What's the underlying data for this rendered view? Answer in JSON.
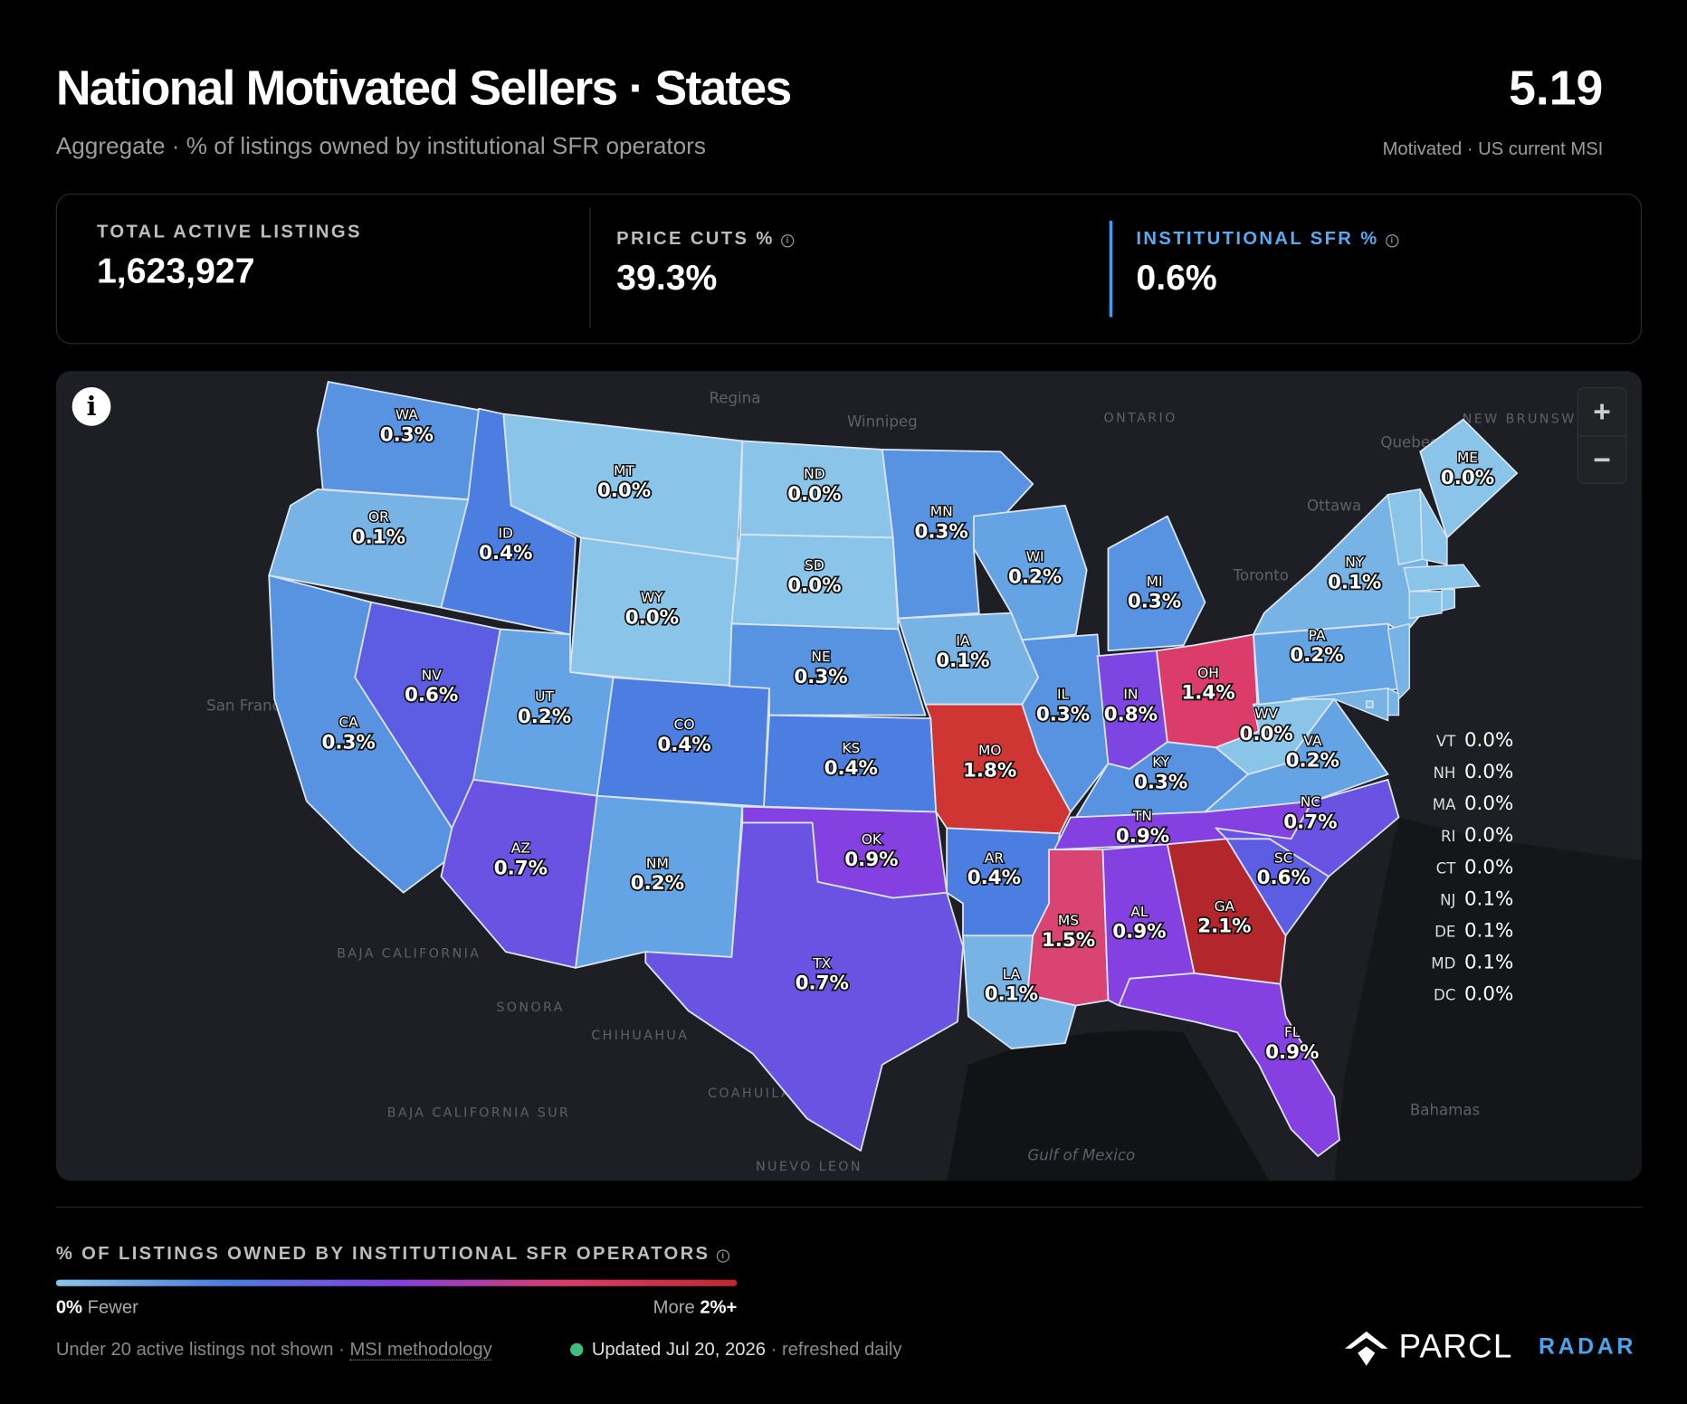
{
  "header": {
    "title": "National Motivated Sellers · States",
    "subtitle": "Aggregate · % of listings owned by institutional SFR operators",
    "headline_value": "5.19",
    "headline_label": "Motivated · US current MSI"
  },
  "stats": [
    {
      "label": "TOTAL ACTIVE LISTINGS",
      "value": "1,623,927"
    },
    {
      "label": "PRICE CUTS %",
      "value": "39.3%"
    },
    {
      "label": "INSTITUTIONAL SFR %",
      "value": "0.6%",
      "active": true
    }
  ],
  "map": {
    "states": [
      {
        "code": "WA",
        "value": 0.3,
        "value_label": "0.3%",
        "color": "#5893e2"
      },
      {
        "code": "OR",
        "value": 0.1,
        "value_label": "0.1%",
        "color": "#78b3e6"
      },
      {
        "code": "CA",
        "value": 0.3,
        "value_label": "0.3%",
        "color": "#5893e2"
      },
      {
        "code": "NV",
        "value": 0.6,
        "value_label": "0.6%",
        "color": "#5c5de2"
      },
      {
        "code": "ID",
        "value": 0.4,
        "value_label": "0.4%",
        "color": "#4b7ee0"
      },
      {
        "code": "MT",
        "value": 0.0,
        "value_label": "0.0%",
        "color": "#8ac4e8"
      },
      {
        "code": "WY",
        "value": 0.0,
        "value_label": "0.0%",
        "color": "#8ac4e8"
      },
      {
        "code": "UT",
        "value": 0.2,
        "value_label": "0.2%",
        "color": "#64a3e4"
      },
      {
        "code": "CO",
        "value": 0.4,
        "value_label": "0.4%",
        "color": "#4b7ee0"
      },
      {
        "code": "AZ",
        "value": 0.7,
        "value_label": "0.7%",
        "color": "#6a52e2"
      },
      {
        "code": "NM",
        "value": 0.2,
        "value_label": "0.2%",
        "color": "#64a3e4"
      },
      {
        "code": "ND",
        "value": 0.0,
        "value_label": "0.0%",
        "color": "#8ac4e8"
      },
      {
        "code": "SD",
        "value": 0.0,
        "value_label": "0.0%",
        "color": "#8ac4e8"
      },
      {
        "code": "NE",
        "value": 0.3,
        "value_label": "0.3%",
        "color": "#5893e2"
      },
      {
        "code": "KS",
        "value": 0.4,
        "value_label": "0.4%",
        "color": "#4b7ee0"
      },
      {
        "code": "OK",
        "value": 0.9,
        "value_label": "0.9%",
        "color": "#8440e0"
      },
      {
        "code": "TX",
        "value": 0.7,
        "value_label": "0.7%",
        "color": "#6a52e2"
      },
      {
        "code": "MN",
        "value": 0.3,
        "value_label": "0.3%",
        "color": "#5893e2"
      },
      {
        "code": "IA",
        "value": 0.1,
        "value_label": "0.1%",
        "color": "#78b3e6"
      },
      {
        "code": "MO",
        "value": 1.8,
        "value_label": "1.8%",
        "color": "#cf3533"
      },
      {
        "code": "AR",
        "value": 0.4,
        "value_label": "0.4%",
        "color": "#4b7ee0"
      },
      {
        "code": "LA",
        "value": 0.1,
        "value_label": "0.1%",
        "color": "#78b3e6"
      },
      {
        "code": "WI",
        "value": 0.2,
        "value_label": "0.2%",
        "color": "#64a3e4"
      },
      {
        "code": "IL",
        "value": 0.3,
        "value_label": "0.3%",
        "color": "#5893e2"
      },
      {
        "code": "MI",
        "value": 0.3,
        "value_label": "0.3%",
        "color": "#5893e2"
      },
      {
        "code": "IN",
        "value": 0.8,
        "value_label": "0.8%",
        "color": "#7d45e2"
      },
      {
        "code": "OH",
        "value": 1.4,
        "value_label": "1.4%",
        "color": "#dc3c6a"
      },
      {
        "code": "KY",
        "value": 0.3,
        "value_label": "0.3%",
        "color": "#5893e2"
      },
      {
        "code": "TN",
        "value": 0.9,
        "value_label": "0.9%",
        "color": "#8440e0"
      },
      {
        "code": "MS",
        "value": 1.5,
        "value_label": "1.5%",
        "color": "#d94472"
      },
      {
        "code": "AL",
        "value": 0.9,
        "value_label": "0.9%",
        "color": "#8440e0"
      },
      {
        "code": "GA",
        "value": 2.1,
        "value_label": "2.1%",
        "color": "#b3262b"
      },
      {
        "code": "FL",
        "value": 0.9,
        "value_label": "0.9%",
        "color": "#8440e0"
      },
      {
        "code": "SC",
        "value": 0.6,
        "value_label": "0.6%",
        "color": "#5c5de2"
      },
      {
        "code": "NC",
        "value": 0.7,
        "value_label": "0.7%",
        "color": "#6a52e2"
      },
      {
        "code": "VA",
        "value": 0.2,
        "value_label": "0.2%",
        "color": "#64a3e4"
      },
      {
        "code": "WV",
        "value": 0.0,
        "value_label": "0.0%",
        "color": "#8ac4e8"
      },
      {
        "code": "PA",
        "value": 0.2,
        "value_label": "0.2%",
        "color": "#64a3e4"
      },
      {
        "code": "NY",
        "value": 0.1,
        "value_label": "0.1%",
        "color": "#78b3e6"
      },
      {
        "code": "ME",
        "value": 0.0,
        "value_label": "0.0%",
        "color": "#8ac4e8"
      }
    ],
    "small_states": [
      {
        "code": "VT",
        "value": 0.0,
        "value_label": "0.0%",
        "color": "#8ac4e8"
      },
      {
        "code": "NH",
        "value": 0.0,
        "value_label": "0.0%",
        "color": "#8ac4e8"
      },
      {
        "code": "MA",
        "value": 0.0,
        "value_label": "0.0%",
        "color": "#8ac4e8"
      },
      {
        "code": "RI",
        "value": 0.0,
        "value_label": "0.0%",
        "color": "#8ac4e8"
      },
      {
        "code": "CT",
        "value": 0.0,
        "value_label": "0.0%",
        "color": "#8ac4e8"
      },
      {
        "code": "NJ",
        "value": 0.1,
        "value_label": "0.1%",
        "color": "#78b3e6"
      },
      {
        "code": "DE",
        "value": 0.1,
        "value_label": "0.1%",
        "color": "#78b3e6"
      },
      {
        "code": "MD",
        "value": 0.1,
        "value_label": "0.1%",
        "color": "#78b3e6"
      },
      {
        "code": "DC",
        "value": 0.0,
        "value_label": "0.0%",
        "color": "#8ac4e8"
      }
    ],
    "place_labels": [
      "Regina",
      "Winnipeg",
      "ONTARIO",
      "NEW BRUNSWICK",
      "Quebec",
      "Ottawa",
      "Toronto",
      "San Francisco",
      "BAJA CALIFORNIA",
      "SONORA",
      "CHIHUAHUA",
      "COAHUILA",
      "BAJA CALIFORNIA SUR",
      "NUEVO LEON",
      "Gulf of Mexico",
      "Bahamas"
    ],
    "zoom_in": "+",
    "zoom_out": "−"
  },
  "legend": {
    "title": "% OF LISTINGS OWNED BY INSTITUTIONAL SFR OPERATORS",
    "colors": [
      "#8ac4e8",
      "#4b7ee0",
      "#8440e0",
      "#dc3c6a",
      "#c0282c"
    ],
    "min_label": "0%",
    "min_text": "Fewer",
    "max_text": "More",
    "max_label": "2%+"
  },
  "footer": {
    "note": "Under 20 active listings not shown ·",
    "link": "MSI methodology",
    "updated": "Updated Jul 20, 2026",
    "refresh": "· refreshed daily",
    "brand": "PARCL",
    "product": "RADAR"
  }
}
